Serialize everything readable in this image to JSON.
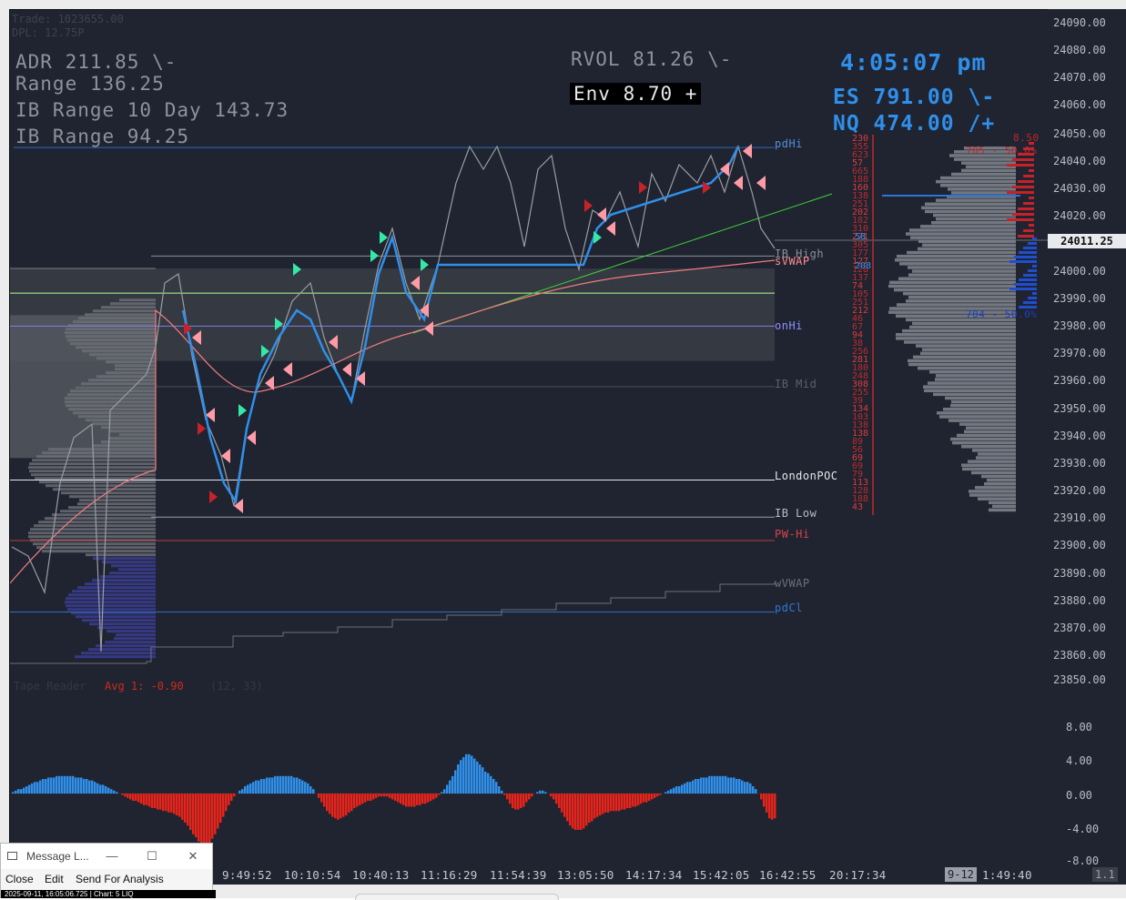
{
  "ghost_top": {
    "line1": "Trade: 1023655.00",
    "line2": "DPL: 12.75P"
  },
  "stats_left": {
    "adr": "ADR 211.85  \\-",
    "range": "Range 136.25",
    "ib10": "IB Range 10 Day 143.73",
    "ib": "IB Range 94.25"
  },
  "rvol": "RVOL 81.26  \\-",
  "env": "Env 8.70  +",
  "clock": "4:05:07 pm",
  "es": "ES 791.00  \\-",
  "nq": "NQ 474.00  /+",
  "tape_reader": {
    "label": "Tape Reader",
    "avg": "Avg 1: -0.90",
    "extra": "(12, 33)"
  },
  "levels": {
    "pdhi": "pdHi",
    "ib_high": "IB High",
    "svwap": "sVWAP",
    "onhi": "onHi",
    "ib_mid": "IB Mid",
    "london_poc": "LondonPOC",
    "ib_low": "IB Low",
    "pw_hi": "PW-Hi",
    "wvwap": "wVWAP",
    "pdcl": "pdCl"
  },
  "profile_labels": {
    "top_red": "705 - 50.0%",
    "mid_blue": "704 - 50.0%",
    "top_val": "8.50"
  },
  "price_axis": [
    "24090.00",
    "24080.00",
    "24070.00",
    "24060.00",
    "24050.00",
    "24040.00",
    "24030.00",
    "24020.00",
    "24011.25",
    "24000.00",
    "23990.00",
    "23980.00",
    "23970.00",
    "23960.00",
    "23950.00",
    "23940.00",
    "23930.00",
    "23920.00",
    "23910.00",
    "23900.00",
    "23890.00",
    "23880.00",
    "23870.00",
    "23860.00",
    "23850.00"
  ],
  "current_price": "24011.25",
  "osc_axis": [
    "8.00",
    "4.00",
    "0.00",
    "-4.00",
    "-8.00"
  ],
  "time_axis": [
    "9:49:52",
    "10:10:54",
    "10:40:13",
    "11:16:29",
    "11:54:39",
    "13:05:50",
    "14:17:34",
    "15:42:05",
    "16:42:55",
    "20:17:34",
    "1:49:40"
  ],
  "time_badge": "9-12",
  "time_right": "1.1",
  "ladder_red": [
    "230",
    "355",
    "623",
    "57",
    "665",
    "188",
    "160",
    "138",
    "251",
    "202",
    "182",
    "310",
    "271",
    "305",
    "177",
    "127",
    "128",
    "137",
    "74",
    "105",
    "251",
    "212",
    "46",
    "67",
    "94",
    "38",
    "256",
    "281",
    "180",
    "248",
    "308",
    "255",
    "39",
    "134",
    "103",
    "138",
    "138",
    "89",
    "56",
    "69",
    "69",
    "79",
    "113",
    "128",
    "188",
    "43"
  ],
  "ladder_blue": [
    "58",
    "208"
  ],
  "colors": {
    "background": "#1f2430",
    "price_up": "#2f8fea",
    "price_down": "#e8231a",
    "arrow_pink": "#ff9aa6",
    "arrow_green": "#35e8a6",
    "level_blue": "#2b6cb8"
  },
  "message_window": {
    "title": "Message L...",
    "menu": [
      "Close",
      "Edit",
      "Send For Analysis"
    ],
    "status": "2025-09-11, 16:05:06.725 | Chart: 5 LIQ"
  }
}
